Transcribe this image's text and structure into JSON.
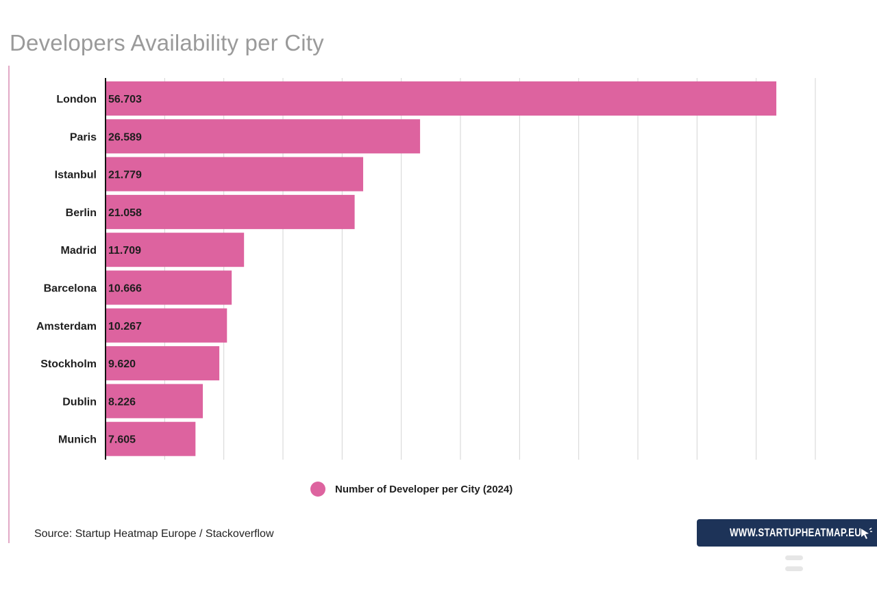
{
  "title": "Developers Availability per City",
  "colors": {
    "bar": "#dd639f",
    "grid": "#d3d3d3",
    "axis": "#111111",
    "brand_bg": "#1d3358"
  },
  "chart_data": {
    "type": "bar",
    "orientation": "horizontal",
    "categories": [
      "London",
      "Paris",
      "Istanbul",
      "Berlin",
      "Madrid",
      "Barcelona",
      "Amsterdam",
      "Stockholm",
      "Dublin",
      "Munich"
    ],
    "series": [
      {
        "name": "Number of Developer per City (2024)",
        "values": [
          56703,
          26589,
          21779,
          21058,
          11709,
          10666,
          10267,
          9620,
          8226,
          7605
        ],
        "labels": [
          "56.703",
          "26.589",
          "21.779",
          "21.058",
          "11.709",
          "10.666",
          "10.267",
          "9.620",
          "8.226",
          "7.605"
        ]
      }
    ],
    "xlim": [
      0,
      60000
    ],
    "grid": true,
    "legend_position": "bottom",
    "title": "Developers Availability per City"
  },
  "legend": {
    "label": "Number of Developer per City (2024)"
  },
  "source": "Source: Startup Heatmap Europe / Stackoverflow",
  "brand": {
    "text": "WWW.STARTUPHEATMAP.EU",
    "icon": "cursor-arrow-icon"
  }
}
